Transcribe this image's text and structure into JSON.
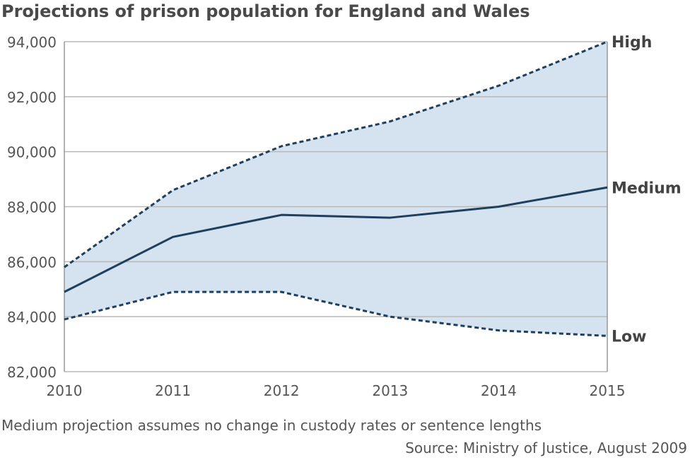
{
  "chart_data": {
    "type": "line",
    "title": "Projections of prison population for England and Wales",
    "x": [
      2010,
      2011,
      2012,
      2013,
      2014,
      2015
    ],
    "xtick_labels": [
      "2010",
      "2011",
      "2012",
      "2013",
      "2014",
      "2015"
    ],
    "ylim": [
      82000,
      94000
    ],
    "yticks": [
      82000,
      84000,
      86000,
      88000,
      90000,
      92000,
      94000
    ],
    "ytick_labels": [
      "82,000",
      "84,000",
      "86,000",
      "88,000",
      "90,000",
      "92,000",
      "94,000"
    ],
    "grid": true,
    "series": [
      {
        "name": "High",
        "style": "dashed",
        "values": [
          85800,
          88600,
          90200,
          91100,
          92400,
          94000
        ]
      },
      {
        "name": "Medium",
        "style": "solid",
        "values": [
          84900,
          86900,
          87700,
          87600,
          88000,
          88700
        ]
      },
      {
        "name": "Low",
        "style": "dashed",
        "values": [
          83900,
          84900,
          84900,
          84000,
          83500,
          83300
        ]
      }
    ],
    "band_color": "#d4e3ef",
    "line_color": "#1e3f5e",
    "note": "Medium projection assumes no change in custody rates or sentence lengths",
    "source": "Source: Ministry of Justice, August 2009"
  }
}
